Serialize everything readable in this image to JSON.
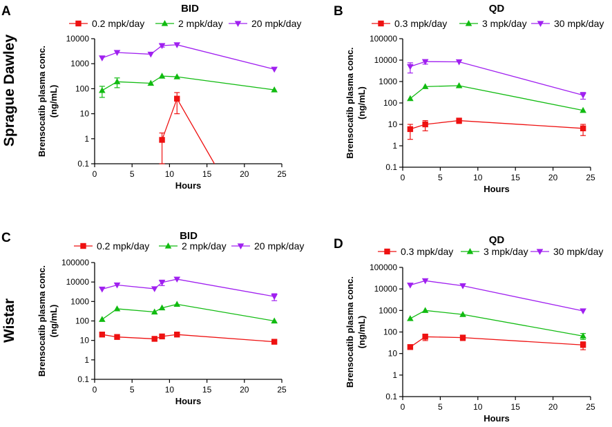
{
  "row_labels": [
    "Sprague Dawley",
    "Wistar"
  ],
  "colors": {
    "low": "#ee1111",
    "mid": "#11bb11",
    "high": "#a020f0",
    "axis": "#000000"
  },
  "chart_data": [
    {
      "panel": "A",
      "title": "BID",
      "type": "line",
      "yscale": "log",
      "xlabel": "Hours",
      "ylabel": [
        "Brensocatib plasma conc.",
        "(ng/mL)"
      ],
      "xlim": [
        0,
        25
      ],
      "xticks": [
        "0",
        "5",
        "10",
        "15",
        "20",
        "25"
      ],
      "ylim": [
        0.1,
        10000
      ],
      "yticks": [
        "0.1",
        "1",
        "10",
        "100",
        "1000",
        "10000"
      ],
      "series": [
        {
          "name": "0.2 mpk/day",
          "color": "#ee1111",
          "marker": "square",
          "x": [
            9,
            11,
            16
          ],
          "y": [
            0.9,
            40,
            0.1
          ],
          "err": [
            0.8,
            30,
            0
          ]
        },
        {
          "name": "2 mpk/day",
          "color": "#11bb11",
          "marker": "triangle-up",
          "x": [
            1,
            3,
            7.5,
            9,
            11,
            24
          ],
          "y": [
            85,
            190,
            165,
            320,
            300,
            90
          ],
          "err": [
            40,
            80,
            0,
            0,
            0,
            0
          ]
        },
        {
          "name": "20 mpk/day",
          "color": "#a020f0",
          "marker": "triangle-down",
          "x": [
            1,
            3,
            7.5,
            9,
            11,
            24
          ],
          "y": [
            1700,
            2800,
            2400,
            5300,
            5700,
            600
          ],
          "err": [
            0,
            0,
            0,
            700,
            0,
            0
          ]
        }
      ]
    },
    {
      "panel": "B",
      "title": "QD",
      "type": "line",
      "yscale": "log",
      "xlabel": "Hours",
      "ylabel": [
        "Brensocatib plasma conc.",
        "(ng/mL)"
      ],
      "xlim": [
        0,
        25
      ],
      "xticks": [
        "0",
        "5",
        "10",
        "15",
        "20",
        "25"
      ],
      "ylim": [
        0.1,
        100000
      ],
      "yticks": [
        "0.1",
        "1",
        "10",
        "100",
        "1000",
        "10000",
        "100000"
      ],
      "series": [
        {
          "name": "0.3 mpk/day",
          "color": "#ee1111",
          "marker": "square",
          "x": [
            1,
            3,
            7.5,
            24
          ],
          "y": [
            6,
            10,
            15,
            6.5
          ],
          "err": [
            4,
            5,
            4,
            3.5
          ]
        },
        {
          "name": "3 mpk/day",
          "color": "#11bb11",
          "marker": "triangle-up",
          "x": [
            1,
            3,
            7.5,
            24
          ],
          "y": [
            160,
            580,
            640,
            45
          ],
          "err": [
            0,
            0,
            0,
            0
          ]
        },
        {
          "name": "30 mpk/day",
          "color": "#a020f0",
          "marker": "triangle-down",
          "x": [
            1,
            3,
            7.5,
            24
          ],
          "y": [
            5000,
            8500,
            8300,
            230
          ],
          "err": [
            2500,
            2000,
            0,
            80
          ]
        }
      ]
    },
    {
      "panel": "C",
      "title": "BID",
      "type": "line",
      "yscale": "log",
      "xlabel": "Hours",
      "ylabel": [
        "Brensocatib plasma conc.",
        "(ng/mL)"
      ],
      "xlim": [
        0,
        25
      ],
      "xticks": [
        "0",
        "5",
        "10",
        "15",
        "20",
        "25"
      ],
      "ylim": [
        0.1,
        100000
      ],
      "yticks": [
        "0.1",
        "1",
        "10",
        "100",
        "1000",
        "10000",
        "100000"
      ],
      "series": [
        {
          "name": "0.2 mpk/day",
          "color": "#ee1111",
          "marker": "square",
          "x": [
            1,
            3,
            8,
            9,
            11,
            24
          ],
          "y": [
            20,
            15,
            12,
            16,
            20,
            8.5
          ],
          "err": [
            0,
            0,
            0,
            0,
            0,
            0
          ]
        },
        {
          "name": "2 mpk/day",
          "color": "#11bb11",
          "marker": "triangle-up",
          "x": [
            1,
            3,
            8,
            9,
            11,
            24
          ],
          "y": [
            120,
            420,
            290,
            470,
            720,
            100
          ],
          "err": [
            0,
            0,
            0,
            0,
            0,
            0
          ]
        },
        {
          "name": "20 mpk/day",
          "color": "#a020f0",
          "marker": "triangle-down",
          "x": [
            1,
            3,
            8,
            9,
            11,
            24
          ],
          "y": [
            4300,
            7000,
            4500,
            9500,
            14000,
            1800
          ],
          "err": [
            0,
            0,
            0,
            3000,
            0,
            700
          ]
        }
      ]
    },
    {
      "panel": "D",
      "title": "QD",
      "type": "line",
      "yscale": "log",
      "xlabel": "Hours",
      "ylabel": [
        "Brensocatib plasma conc.",
        "(ng/mL)"
      ],
      "xlim": [
        0,
        25
      ],
      "xticks": [
        "0",
        "5",
        "10",
        "15",
        "20",
        "25"
      ],
      "ylim": [
        0.1,
        100000
      ],
      "yticks": [
        "0.1",
        "1",
        "10",
        "100",
        "1000",
        "10000",
        "100000"
      ],
      "series": [
        {
          "name": "0.3 mpk/day",
          "color": "#ee1111",
          "marker": "square",
          "x": [
            1,
            3,
            8,
            24
          ],
          "y": [
            20,
            60,
            55,
            25
          ],
          "err": [
            0,
            20,
            15,
            10
          ]
        },
        {
          "name": "3 mpk/day",
          "color": "#11bb11",
          "marker": "triangle-up",
          "x": [
            1,
            3,
            8,
            24
          ],
          "y": [
            420,
            1000,
            650,
            65
          ],
          "err": [
            0,
            0,
            0,
            20
          ]
        },
        {
          "name": "30 mpk/day",
          "color": "#a020f0",
          "marker": "triangle-down",
          "x": [
            1,
            3,
            8,
            24
          ],
          "y": [
            15000,
            24000,
            14000,
            950
          ],
          "err": [
            0,
            0,
            0,
            0
          ]
        }
      ]
    }
  ]
}
